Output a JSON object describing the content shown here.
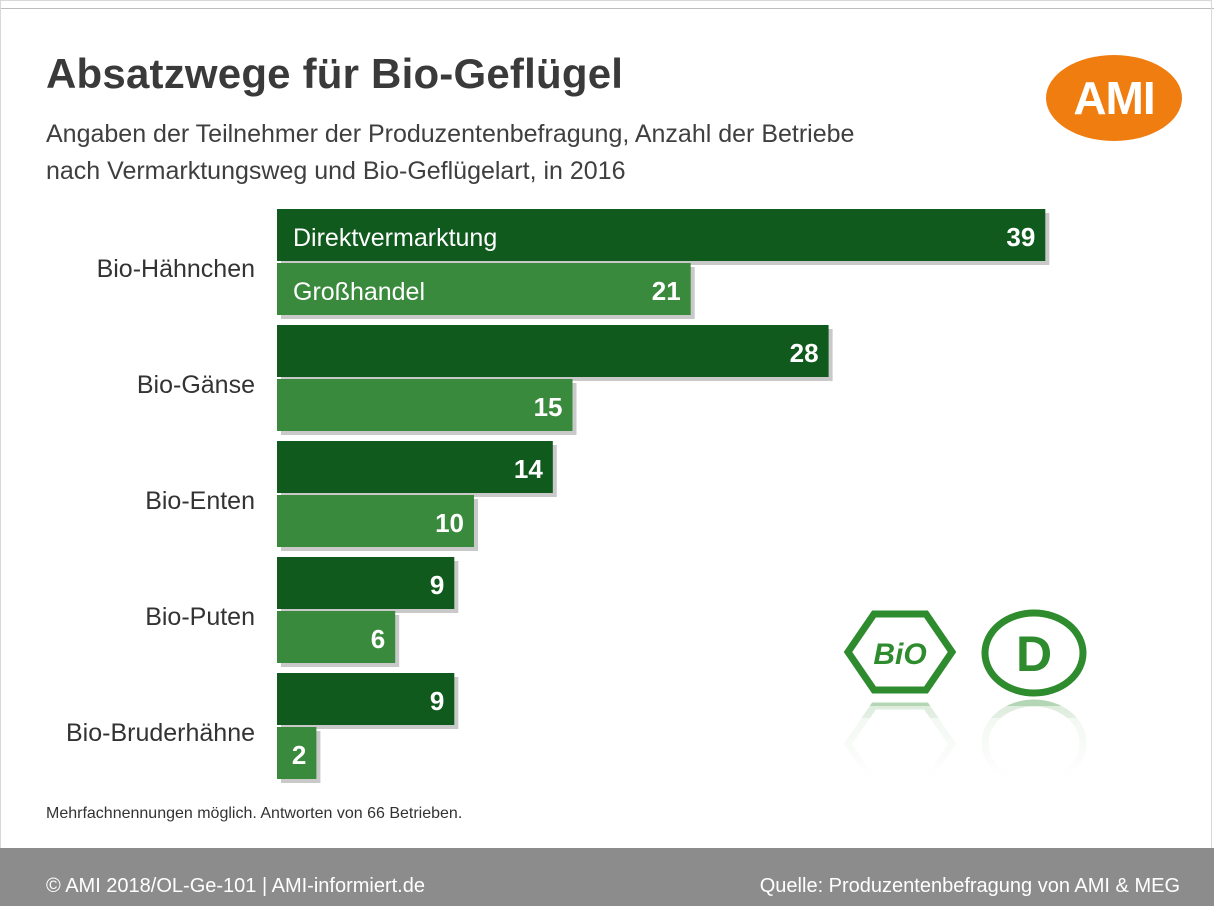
{
  "header": {
    "title": "Absatzwege für Bio-Geflügel",
    "subtitle_line1": "Angaben der Teilnehmer der Produzentenbefragung, Anzahl der Betriebe",
    "subtitle_line2": "nach Vermarktungsweg und Bio-Geflügelart, in 2016",
    "logo_text": "AMI"
  },
  "chart_data": {
    "type": "bar",
    "orientation": "horizontal",
    "categories": [
      "Bio-Hähnchen",
      "Bio-Gänse",
      "Bio-Enten",
      "Bio-Puten",
      "Bio-Bruderhähne"
    ],
    "series": [
      {
        "name": "Direktvermarktung",
        "color": "#0f5a1c",
        "values": [
          39,
          28,
          14,
          9,
          9
        ]
      },
      {
        "name": "Großhandel",
        "color": "#3a8a3d",
        "values": [
          21,
          15,
          10,
          6,
          2
        ]
      }
    ],
    "xlim": [
      0,
      40
    ],
    "grid": false,
    "legend": "inside-first-bars"
  },
  "footnote": "Mehrfachnennungen möglich. Antworten von 66 Betrieben.",
  "footer": {
    "left": "© AMI 2018/OL-Ge-101 | AMI-informiert.de",
    "right": "Quelle: Produzentenbefragung von AMI & MEG"
  },
  "seals": {
    "bio_seal_text": "BiO",
    "d_seal_text": "D",
    "color": "#2e8b2e"
  },
  "colors": {
    "accent_orange": "#f07d0f",
    "footer_gray": "#8c8c8c"
  }
}
